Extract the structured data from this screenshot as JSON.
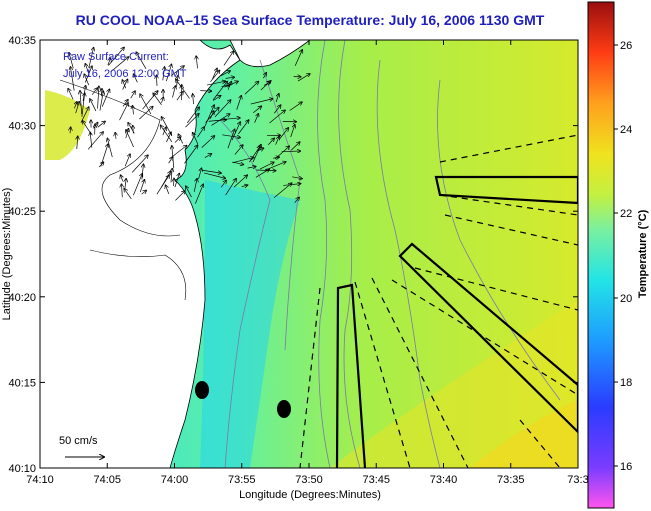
{
  "title": "RU COOL  NOAA–15  Sea Surface Temperature:  July 16, 2006 1130 GMT",
  "legend": {
    "line1": "Raw Surface Current:",
    "line2": "July 16, 2006 12:00 GMT",
    "scale_label": "50 cm/s"
  },
  "axes": {
    "xlabel": "Longitude (Degrees:Minutes)",
    "ylabel": "Latitude (Degrees:Minutes)",
    "x_ticks": [
      "74:10",
      "74:05",
      "74:00",
      "73:55",
      "73:50",
      "73:45",
      "73:40",
      "73:35",
      "73:3"
    ],
    "y_ticks": [
      "40:35",
      "40:30",
      "40:25",
      "40:20",
      "40:15",
      "40:10"
    ]
  },
  "colorbar": {
    "label": "Temperature (°C)",
    "ticks": [
      "26",
      "24",
      "22",
      "20",
      "18",
      "16"
    ],
    "colors": [
      "#ff55ee",
      "#7a3cff",
      "#2a3cff",
      "#1e9bff",
      "#22e4e6",
      "#7af0a0",
      "#c4f040",
      "#f0e21e",
      "#ffa01e",
      "#ff3c14",
      "#d21414",
      "#9a0f0f"
    ]
  }
}
